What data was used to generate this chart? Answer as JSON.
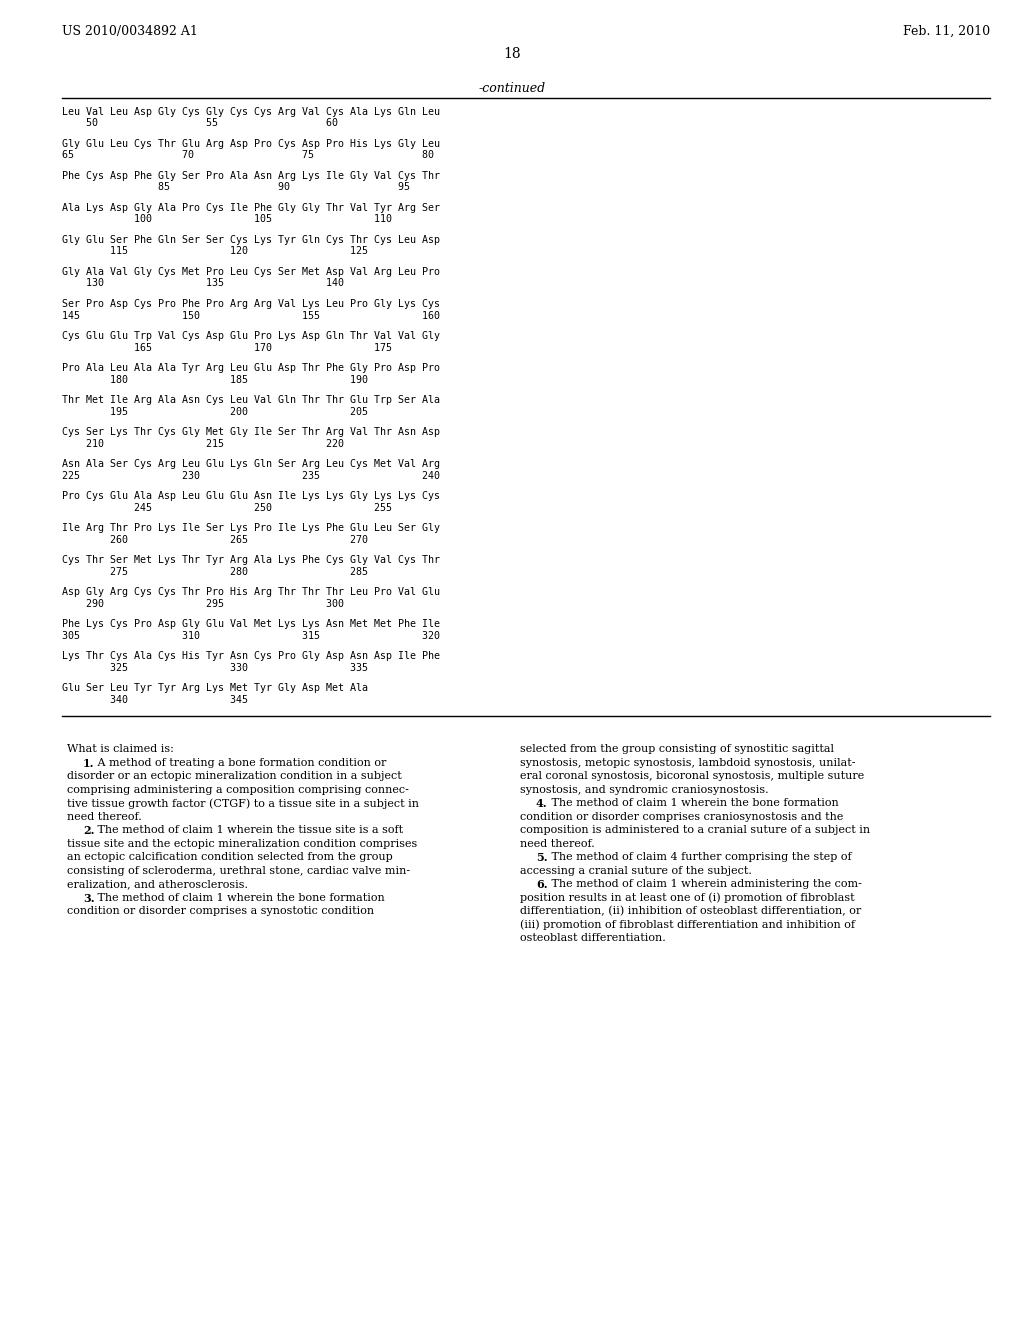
{
  "header_left": "US 2010/0034892 A1",
  "header_right": "Feb. 11, 2010",
  "page_number": "18",
  "continued_label": "-continued",
  "background_color": "#ffffff",
  "text_color": "#000000",
  "sequence_blocks": [
    {
      "line1": "Leu Val Leu Asp Gly Cys Gly Cys Cys Arg Val Cys Ala Lys Gln Leu",
      "line2": "    50                  55                  60"
    },
    {
      "line1": "Gly Glu Leu Cys Thr Glu Arg Asp Pro Cys Asp Pro His Lys Gly Leu",
      "line2": "65                  70                  75                  80"
    },
    {
      "line1": "Phe Cys Asp Phe Gly Ser Pro Ala Asn Arg Lys Ile Gly Val Cys Thr",
      "line2": "                85                  90                  95"
    },
    {
      "line1": "Ala Lys Asp Gly Ala Pro Cys Ile Phe Gly Gly Thr Val Tyr Arg Ser",
      "line2": "            100                 105                 110"
    },
    {
      "line1": "Gly Glu Ser Phe Gln Ser Ser Cys Lys Tyr Gln Cys Thr Cys Leu Asp",
      "line2": "        115                 120                 125"
    },
    {
      "line1": "Gly Ala Val Gly Cys Met Pro Leu Cys Ser Met Asp Val Arg Leu Pro",
      "line2": "    130                 135                 140"
    },
    {
      "line1": "Ser Pro Asp Cys Pro Phe Pro Arg Arg Val Lys Leu Pro Gly Lys Cys",
      "line2": "145                 150                 155                 160"
    },
    {
      "line1": "Cys Glu Glu Trp Val Cys Asp Glu Pro Lys Asp Gln Thr Val Val Gly",
      "line2": "            165                 170                 175"
    },
    {
      "line1": "Pro Ala Leu Ala Ala Tyr Arg Leu Glu Asp Thr Phe Gly Pro Asp Pro",
      "line2": "        180                 185                 190"
    },
    {
      "line1": "Thr Met Ile Arg Ala Asn Cys Leu Val Gln Thr Thr Glu Trp Ser Ala",
      "line2": "        195                 200                 205"
    },
    {
      "line1": "Cys Ser Lys Thr Cys Gly Met Gly Ile Ser Thr Arg Val Thr Asn Asp",
      "line2": "    210                 215                 220"
    },
    {
      "line1": "Asn Ala Ser Cys Arg Leu Glu Lys Gln Ser Arg Leu Cys Met Val Arg",
      "line2": "225                 230                 235                 240"
    },
    {
      "line1": "Pro Cys Glu Ala Asp Leu Glu Glu Asn Ile Lys Lys Gly Lys Lys Cys",
      "line2": "            245                 250                 255"
    },
    {
      "line1": "Ile Arg Thr Pro Lys Ile Ser Lys Pro Ile Lys Phe Glu Leu Ser Gly",
      "line2": "        260                 265                 270"
    },
    {
      "line1": "Cys Thr Ser Met Lys Thr Tyr Arg Ala Lys Phe Cys Gly Val Cys Thr",
      "line2": "        275                 280                 285"
    },
    {
      "line1": "Asp Gly Arg Cys Cys Thr Pro His Arg Thr Thr Thr Leu Pro Val Glu",
      "line2": "    290                 295                 300"
    },
    {
      "line1": "Phe Lys Cys Pro Asp Gly Glu Val Met Lys Lys Asn Met Met Phe Ile",
      "line2": "305                 310                 315                 320"
    },
    {
      "line1": "Lys Thr Cys Ala Cys His Tyr Asn Cys Pro Gly Asp Asn Asp Ile Phe",
      "line2": "        325                 330                 335"
    },
    {
      "line1": "Glu Ser Leu Tyr Tyr Arg Lys Met Tyr Gly Asp Met Ala",
      "line2": "        340                 345"
    }
  ],
  "claims_left": [
    {
      "text": "What is claimed is:",
      "bold_prefix": ""
    },
    {
      "text": "   1. A method of treating a bone formation condition or",
      "bold_prefix": "1."
    },
    {
      "text": "disorder or an ectopic mineralization condition in a subject",
      "bold_prefix": ""
    },
    {
      "text": "comprising administering a composition comprising connec-",
      "bold_prefix": ""
    },
    {
      "text": "tive tissue growth factor (CTGF) to a tissue site in a subject in",
      "bold_prefix": ""
    },
    {
      "text": "need thereof.",
      "bold_prefix": ""
    },
    {
      "text": "   2. The method of claim 1 wherein the tissue site is a soft",
      "bold_prefix": "2."
    },
    {
      "text": "tissue site and the ectopic mineralization condition comprises",
      "bold_prefix": ""
    },
    {
      "text": "an ectopic calcification condition selected from the group",
      "bold_prefix": ""
    },
    {
      "text": "consisting of scleroderma, urethral stone, cardiac valve min-",
      "bold_prefix": ""
    },
    {
      "text": "eralization, and atherosclerosis.",
      "bold_prefix": ""
    },
    {
      "text": "   3. The method of claim 1 wherein the bone formation",
      "bold_prefix": "3."
    },
    {
      "text": "condition or disorder comprises a synostotic condition",
      "bold_prefix": ""
    }
  ],
  "claims_right": [
    {
      "text": "selected from the group consisting of synostitic sagittal",
      "bold_prefix": ""
    },
    {
      "text": "synostosis, metopic synostosis, lambdoid synostosis, unilat-",
      "bold_prefix": ""
    },
    {
      "text": "eral coronal synostosis, bicoronal synostosis, multiple suture",
      "bold_prefix": ""
    },
    {
      "text": "synostosis, and syndromic craniosynostosis.",
      "bold_prefix": ""
    },
    {
      "text": "   4. The method of claim 1 wherein the bone formation",
      "bold_prefix": "4."
    },
    {
      "text": "condition or disorder comprises craniosynostosis and the",
      "bold_prefix": ""
    },
    {
      "text": "composition is administered to a cranial suture of a subject in",
      "bold_prefix": ""
    },
    {
      "text": "need thereof.",
      "bold_prefix": ""
    },
    {
      "text": "   5. The method of claim 4 further comprising the step of",
      "bold_prefix": "5."
    },
    {
      "text": "accessing a cranial suture of the subject.",
      "bold_prefix": ""
    },
    {
      "text": "   6. The method of claim 1 wherein administering the com-",
      "bold_prefix": "6."
    },
    {
      "text": "position results in at least one of (i) promotion of fibroblast",
      "bold_prefix": ""
    },
    {
      "text": "differentiation, (ii) inhibition of osteoblast differentiation, or",
      "bold_prefix": ""
    },
    {
      "text": "(iii) promotion of fibroblast differentiation and inhibition of",
      "bold_prefix": ""
    },
    {
      "text": "osteoblast differentiation.",
      "bold_prefix": ""
    }
  ]
}
